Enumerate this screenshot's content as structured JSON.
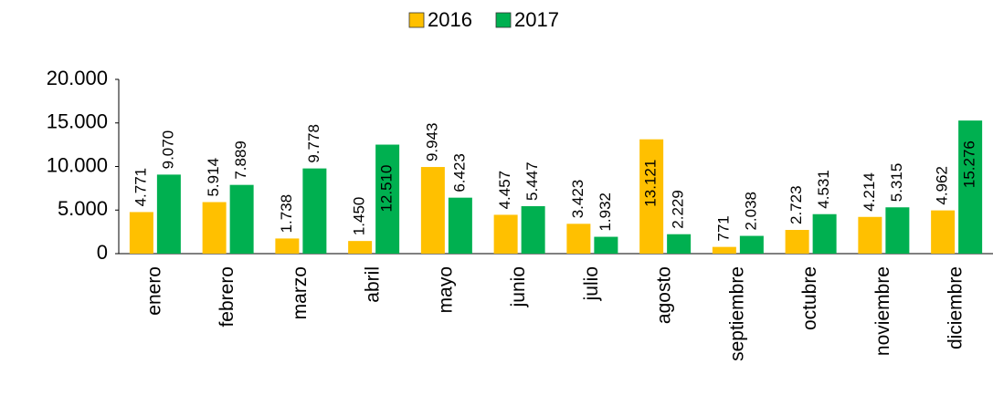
{
  "chart_data": {
    "type": "bar",
    "categories": [
      "enero",
      "febrero",
      "marzo",
      "abril",
      "mayo",
      "junio",
      "julio",
      "agosto",
      "septiembre",
      "octubre",
      "noviembre",
      "diciembre"
    ],
    "series": [
      {
        "name": "2016",
        "color": "#FFC000",
        "values": [
          4771,
          5914,
          1738,
          1450,
          9943,
          4457,
          3423,
          13121,
          771,
          2723,
          4214,
          4962
        ],
        "value_labels": [
          "4.771",
          "5.914",
          "1.738",
          "1.450",
          "9.943",
          "4.457",
          "3.423",
          "13.121",
          "771",
          "2.723",
          "4.214",
          "4.962"
        ]
      },
      {
        "name": "2017",
        "color": "#00B050",
        "values": [
          9070,
          7889,
          9778,
          12510,
          6423,
          5447,
          1932,
          2229,
          2038,
          4531,
          5315,
          15276
        ],
        "value_labels": [
          "9.070",
          "7.889",
          "9.778",
          "12.510",
          "6.423",
          "5.447",
          "1.932",
          "2.229",
          "2.038",
          "4.531",
          "5.315",
          "15.276"
        ]
      }
    ],
    "ylim": [
      0,
      20000
    ],
    "yticks": [
      0,
      {
        "value": 5000,
        "label": "5.000"
      },
      {
        "value": 10000,
        "label": "10.000"
      },
      {
        "value": 15000,
        "label": "15.000"
      },
      {
        "value": 20000,
        "label": "20.000"
      }
    ],
    "grid": false,
    "legend": "top"
  }
}
